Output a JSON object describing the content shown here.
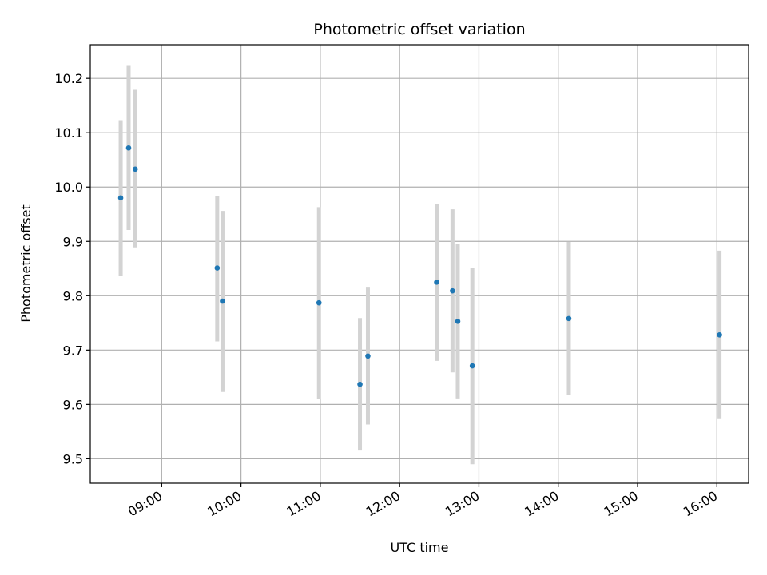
{
  "chart_data": {
    "type": "scatter",
    "title": "Photometric offset variation",
    "xlabel": "UTC time",
    "ylabel": "Photometric offset",
    "grid": true,
    "x_ticks": [
      "09:00",
      "10:00",
      "11:00",
      "12:00",
      "13:00",
      "14:00",
      "15:00",
      "16:00"
    ],
    "xlim": [
      "08:06",
      "16:24"
    ],
    "y_ticks": [
      "9.5",
      "9.6",
      "9.7",
      "9.8",
      "9.9",
      "10.0",
      "10.1",
      "10.2"
    ],
    "ylim": [
      9.455,
      10.262
    ],
    "colors": {
      "point": "#1f77b4",
      "errorbar": "#d3d3d3",
      "grid": "#b0b0b0"
    },
    "points": [
      {
        "x": "08:29",
        "y": 9.98,
        "ylow": 9.836,
        "yhigh": 10.123
      },
      {
        "x": "08:35",
        "y": 10.072,
        "ylow": 9.921,
        "yhigh": 10.223
      },
      {
        "x": "08:40",
        "y": 10.033,
        "ylow": 9.889,
        "yhigh": 10.179
      },
      {
        "x": "09:42",
        "y": 9.851,
        "ylow": 9.716,
        "yhigh": 9.983
      },
      {
        "x": "09:46",
        "y": 9.79,
        "ylow": 9.623,
        "yhigh": 9.956
      },
      {
        "x": "10:59",
        "y": 9.787,
        "ylow": 9.61,
        "yhigh": 9.963
      },
      {
        "x": "11:30",
        "y": 9.637,
        "ylow": 9.515,
        "yhigh": 9.759
      },
      {
        "x": "11:36",
        "y": 9.689,
        "ylow": 9.563,
        "yhigh": 9.815
      },
      {
        "x": "12:28",
        "y": 9.825,
        "ylow": 9.68,
        "yhigh": 9.969
      },
      {
        "x": "12:40",
        "y": 9.809,
        "ylow": 9.659,
        "yhigh": 9.959
      },
      {
        "x": "12:44",
        "y": 9.753,
        "ylow": 9.611,
        "yhigh": 9.895
      },
      {
        "x": "12:55",
        "y": 9.671,
        "ylow": 9.49,
        "yhigh": 9.851
      },
      {
        "x": "14:08",
        "y": 9.758,
        "ylow": 9.618,
        "yhigh": 9.899
      },
      {
        "x": "16:02",
        "y": 9.728,
        "ylow": 9.573,
        "yhigh": 9.883
      }
    ]
  }
}
